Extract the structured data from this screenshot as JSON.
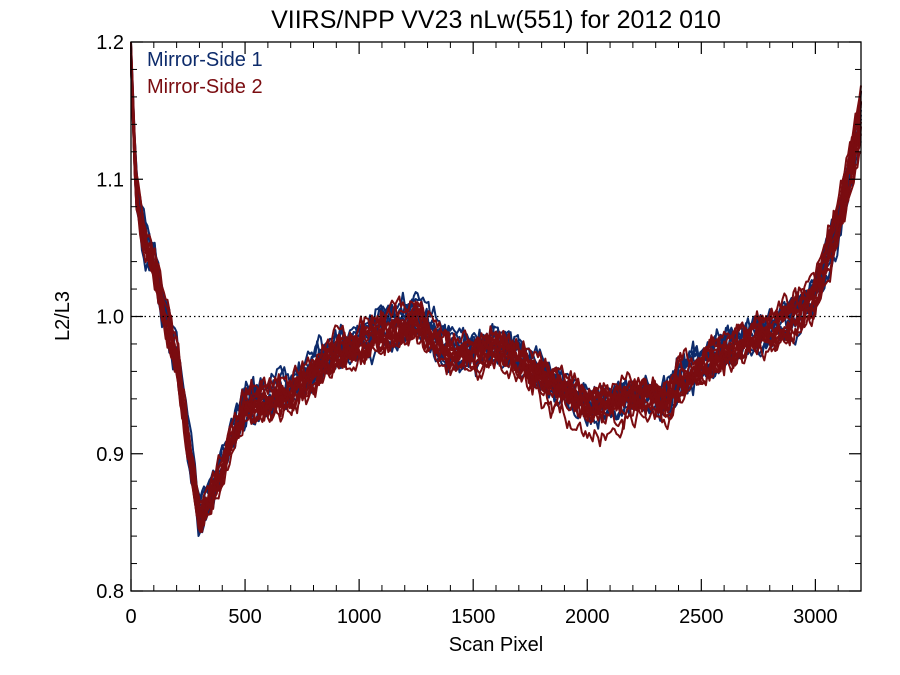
{
  "chart_data": {
    "type": "line",
    "title": "VIIRS/NPP VV23 nLw(551) for 2012 010",
    "xlabel": "Scan Pixel",
    "ylabel": "L2/L3",
    "xlim": [
      0,
      3200
    ],
    "ylim": [
      0.8,
      1.2
    ],
    "x_ticks": [
      0,
      500,
      1000,
      1500,
      2000,
      2500,
      3000
    ],
    "x_tick_labels": [
      "0",
      "500",
      "1000",
      "1500",
      "2000",
      "2500",
      "3000"
    ],
    "y_ticks": [
      0.8,
      0.9,
      1.0,
      1.1,
      1.2
    ],
    "y_tick_labels": [
      "0.8",
      "0.9",
      "1.0",
      "1.1",
      "1.2"
    ],
    "reference_line": {
      "y": 1.0,
      "style": "dotted"
    },
    "grid": false,
    "legend_position": "top-left",
    "mean_profile": {
      "x": [
        0,
        20,
        50,
        100,
        150,
        200,
        250,
        300,
        350,
        400,
        450,
        500,
        600,
        700,
        800,
        900,
        1000,
        1100,
        1200,
        1250,
        1300,
        1400,
        1500,
        1600,
        1700,
        1800,
        1900,
        2000,
        2100,
        2200,
        2300,
        2350,
        2400,
        2500,
        2600,
        2700,
        2800,
        2900,
        3000,
        3100,
        3200
      ],
      "y": [
        1.19,
        1.1,
        1.06,
        1.04,
        1.0,
        0.97,
        0.91,
        0.855,
        0.87,
        0.89,
        0.915,
        0.935,
        0.94,
        0.945,
        0.96,
        0.975,
        0.98,
        0.99,
        0.995,
        1.0,
        0.99,
        0.975,
        0.975,
        0.98,
        0.97,
        0.96,
        0.95,
        0.94,
        0.94,
        0.945,
        0.945,
        0.94,
        0.955,
        0.965,
        0.975,
        0.985,
        0.99,
        1.0,
        1.02,
        1.07,
        1.15
      ]
    },
    "series": [
      {
        "name": "Mirror-Side 1",
        "color": "#0d2b6b",
        "curve_count": 8
      },
      {
        "name": "Mirror-Side 2",
        "color": "#7a0c10",
        "curve_count": 12
      }
    ]
  }
}
